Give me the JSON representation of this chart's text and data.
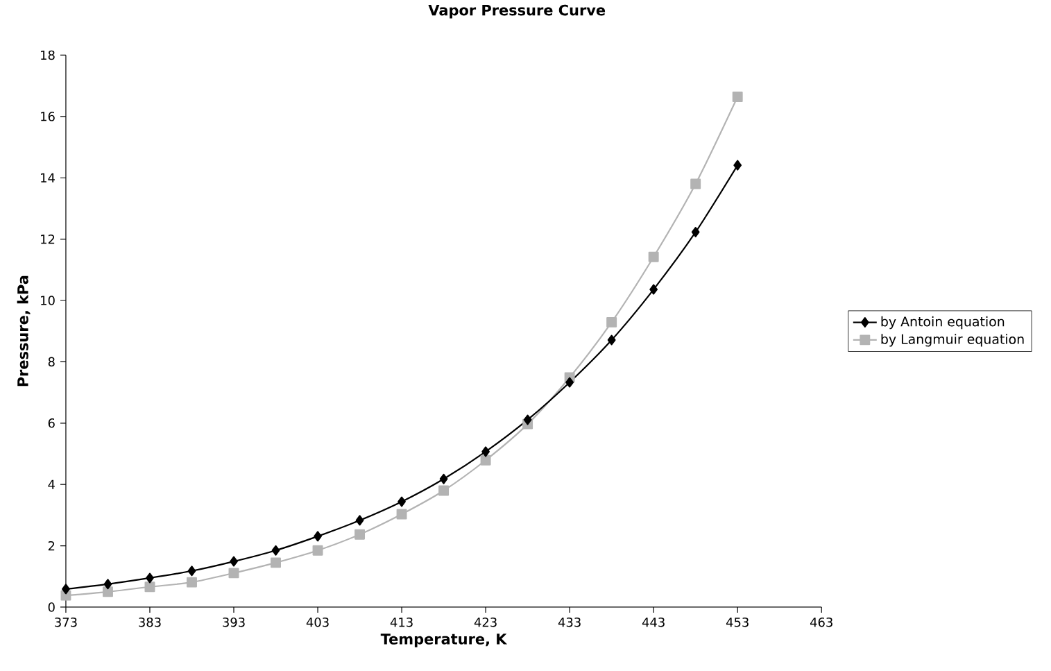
{
  "chart_data": {
    "type": "line",
    "title": "Vapor Pressure Curve",
    "xlabel": "Temperature, K",
    "ylabel": "Pressure, kPa",
    "x": [
      373,
      378,
      383,
      388,
      393,
      398,
      403,
      408,
      413,
      418,
      423,
      428,
      433,
      438,
      443,
      448,
      453
    ],
    "series": [
      {
        "name": "by Antoin equation",
        "color": "#000000",
        "marker": "diamond",
        "values": [
          0.59,
          0.75,
          0.95,
          1.18,
          1.49,
          1.85,
          2.31,
          2.83,
          3.44,
          4.18,
          5.07,
          6.11,
          7.33,
          8.71,
          10.36,
          12.23,
          14.41
        ]
      },
      {
        "name": "by Langmuir equation",
        "color": "#b3b3b3",
        "marker": "square",
        "values": [
          0.38,
          0.5,
          0.66,
          0.81,
          1.11,
          1.45,
          1.85,
          2.37,
          3.03,
          3.8,
          4.79,
          5.97,
          7.49,
          9.29,
          11.42,
          13.8,
          16.64
        ]
      }
    ],
    "xlim": [
      373,
      463
    ],
    "xticks": [
      373,
      383,
      393,
      403,
      413,
      423,
      433,
      443,
      453,
      463
    ],
    "ylim": [
      0,
      18
    ],
    "yticks": [
      0,
      2,
      4,
      6,
      8,
      10,
      12,
      14,
      16,
      18
    ],
    "legend": "right"
  }
}
